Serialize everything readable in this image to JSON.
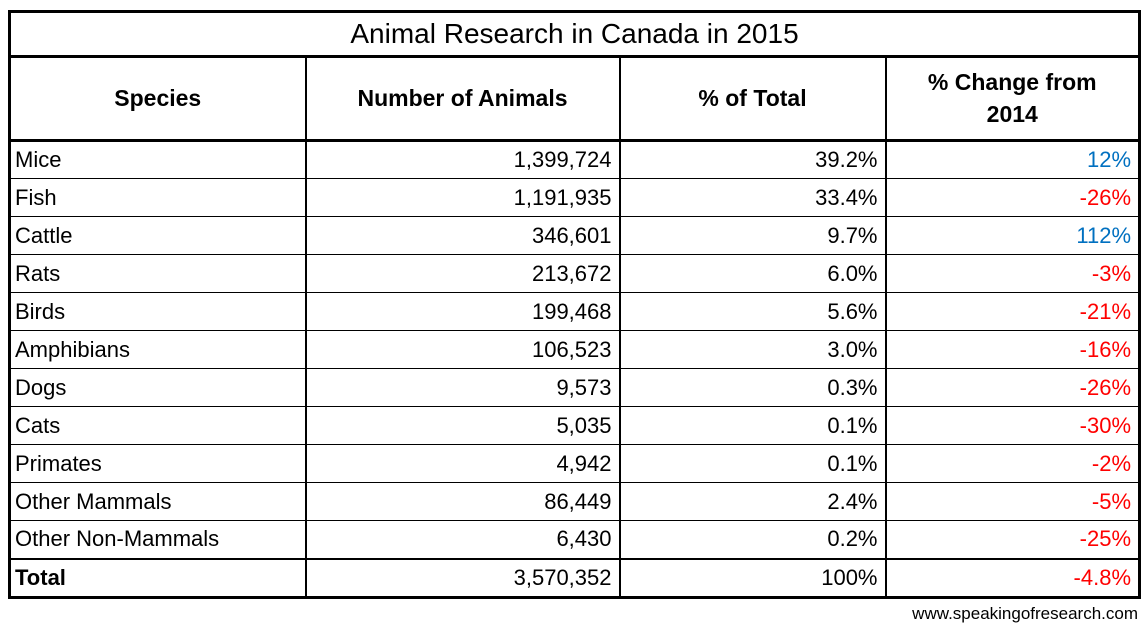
{
  "title": "Animal Research in Canada in 2015",
  "columns": [
    "Species",
    "Number of Animals",
    "% of Total",
    "% Change from 2014"
  ],
  "rows": [
    {
      "species": "Mice",
      "number": "1,399,724",
      "pct_total": "39.2%",
      "pct_change": "12%"
    },
    {
      "species": "Fish",
      "number": "1,191,935",
      "pct_total": "33.4%",
      "pct_change": "-26%"
    },
    {
      "species": "Cattle",
      "number": "346,601",
      "pct_total": "9.7%",
      "pct_change": "112%"
    },
    {
      "species": "Rats",
      "number": "213,672",
      "pct_total": "6.0%",
      "pct_change": "-3%"
    },
    {
      "species": "Birds",
      "number": "199,468",
      "pct_total": "5.6%",
      "pct_change": "-21%"
    },
    {
      "species": "Amphibians",
      "number": "106,523",
      "pct_total": "3.0%",
      "pct_change": "-16%"
    },
    {
      "species": "Dogs",
      "number": "9,573",
      "pct_total": "0.3%",
      "pct_change": "-26%"
    },
    {
      "species": "Cats",
      "number": "5,035",
      "pct_total": "0.1%",
      "pct_change": "-30%"
    },
    {
      "species": "Primates",
      "number": "4,942",
      "pct_total": "0.1%",
      "pct_change": "-2%"
    },
    {
      "species": "Other Mammals",
      "number": "86,449",
      "pct_total": "2.4%",
      "pct_change": "-5%"
    },
    {
      "species": "Other Non-Mammals",
      "number": "6,430",
      "pct_total": "0.2%",
      "pct_change": "-25%"
    }
  ],
  "total_row": {
    "label": "Total",
    "number": "3,570,352",
    "pct_total": "100%",
    "pct_change": "-4.8%"
  },
  "footer": {
    "website": "www.speakingofresearch.com"
  },
  "colors": {
    "positive_change": "#0070C0",
    "negative_change": "#FF0000",
    "text": "#000000",
    "background": "#FFFFFF",
    "border": "#000000"
  },
  "chart_data": {
    "type": "table",
    "title": "Animal Research in Canada in 2015",
    "columns": [
      "Species",
      "Number of Animals",
      "% of Total",
      "% Change from 2014"
    ],
    "rows": [
      [
        "Mice",
        1399724,
        39.2,
        12
      ],
      [
        "Fish",
        1191935,
        33.4,
        -26
      ],
      [
        "Cattle",
        346601,
        9.7,
        112
      ],
      [
        "Rats",
        213672,
        6.0,
        -3
      ],
      [
        "Birds",
        199468,
        5.6,
        -21
      ],
      [
        "Amphibians",
        106523,
        3.0,
        -16
      ],
      [
        "Dogs",
        9573,
        0.3,
        -26
      ],
      [
        "Cats",
        5035,
        0.1,
        -30
      ],
      [
        "Primates",
        4942,
        0.1,
        -2
      ],
      [
        "Other Mammals",
        86449,
        2.4,
        -5
      ],
      [
        "Other Non-Mammals",
        6430,
        0.2,
        -25
      ],
      [
        "Total",
        3570352,
        100,
        -4.8
      ]
    ],
    "layout_hints": {
      "numbers_right_aligned": true,
      "positive_change_color": "#0070C0",
      "negative_change_color": "#FF0000",
      "source_label": "www.speakingofresearch.com"
    }
  }
}
